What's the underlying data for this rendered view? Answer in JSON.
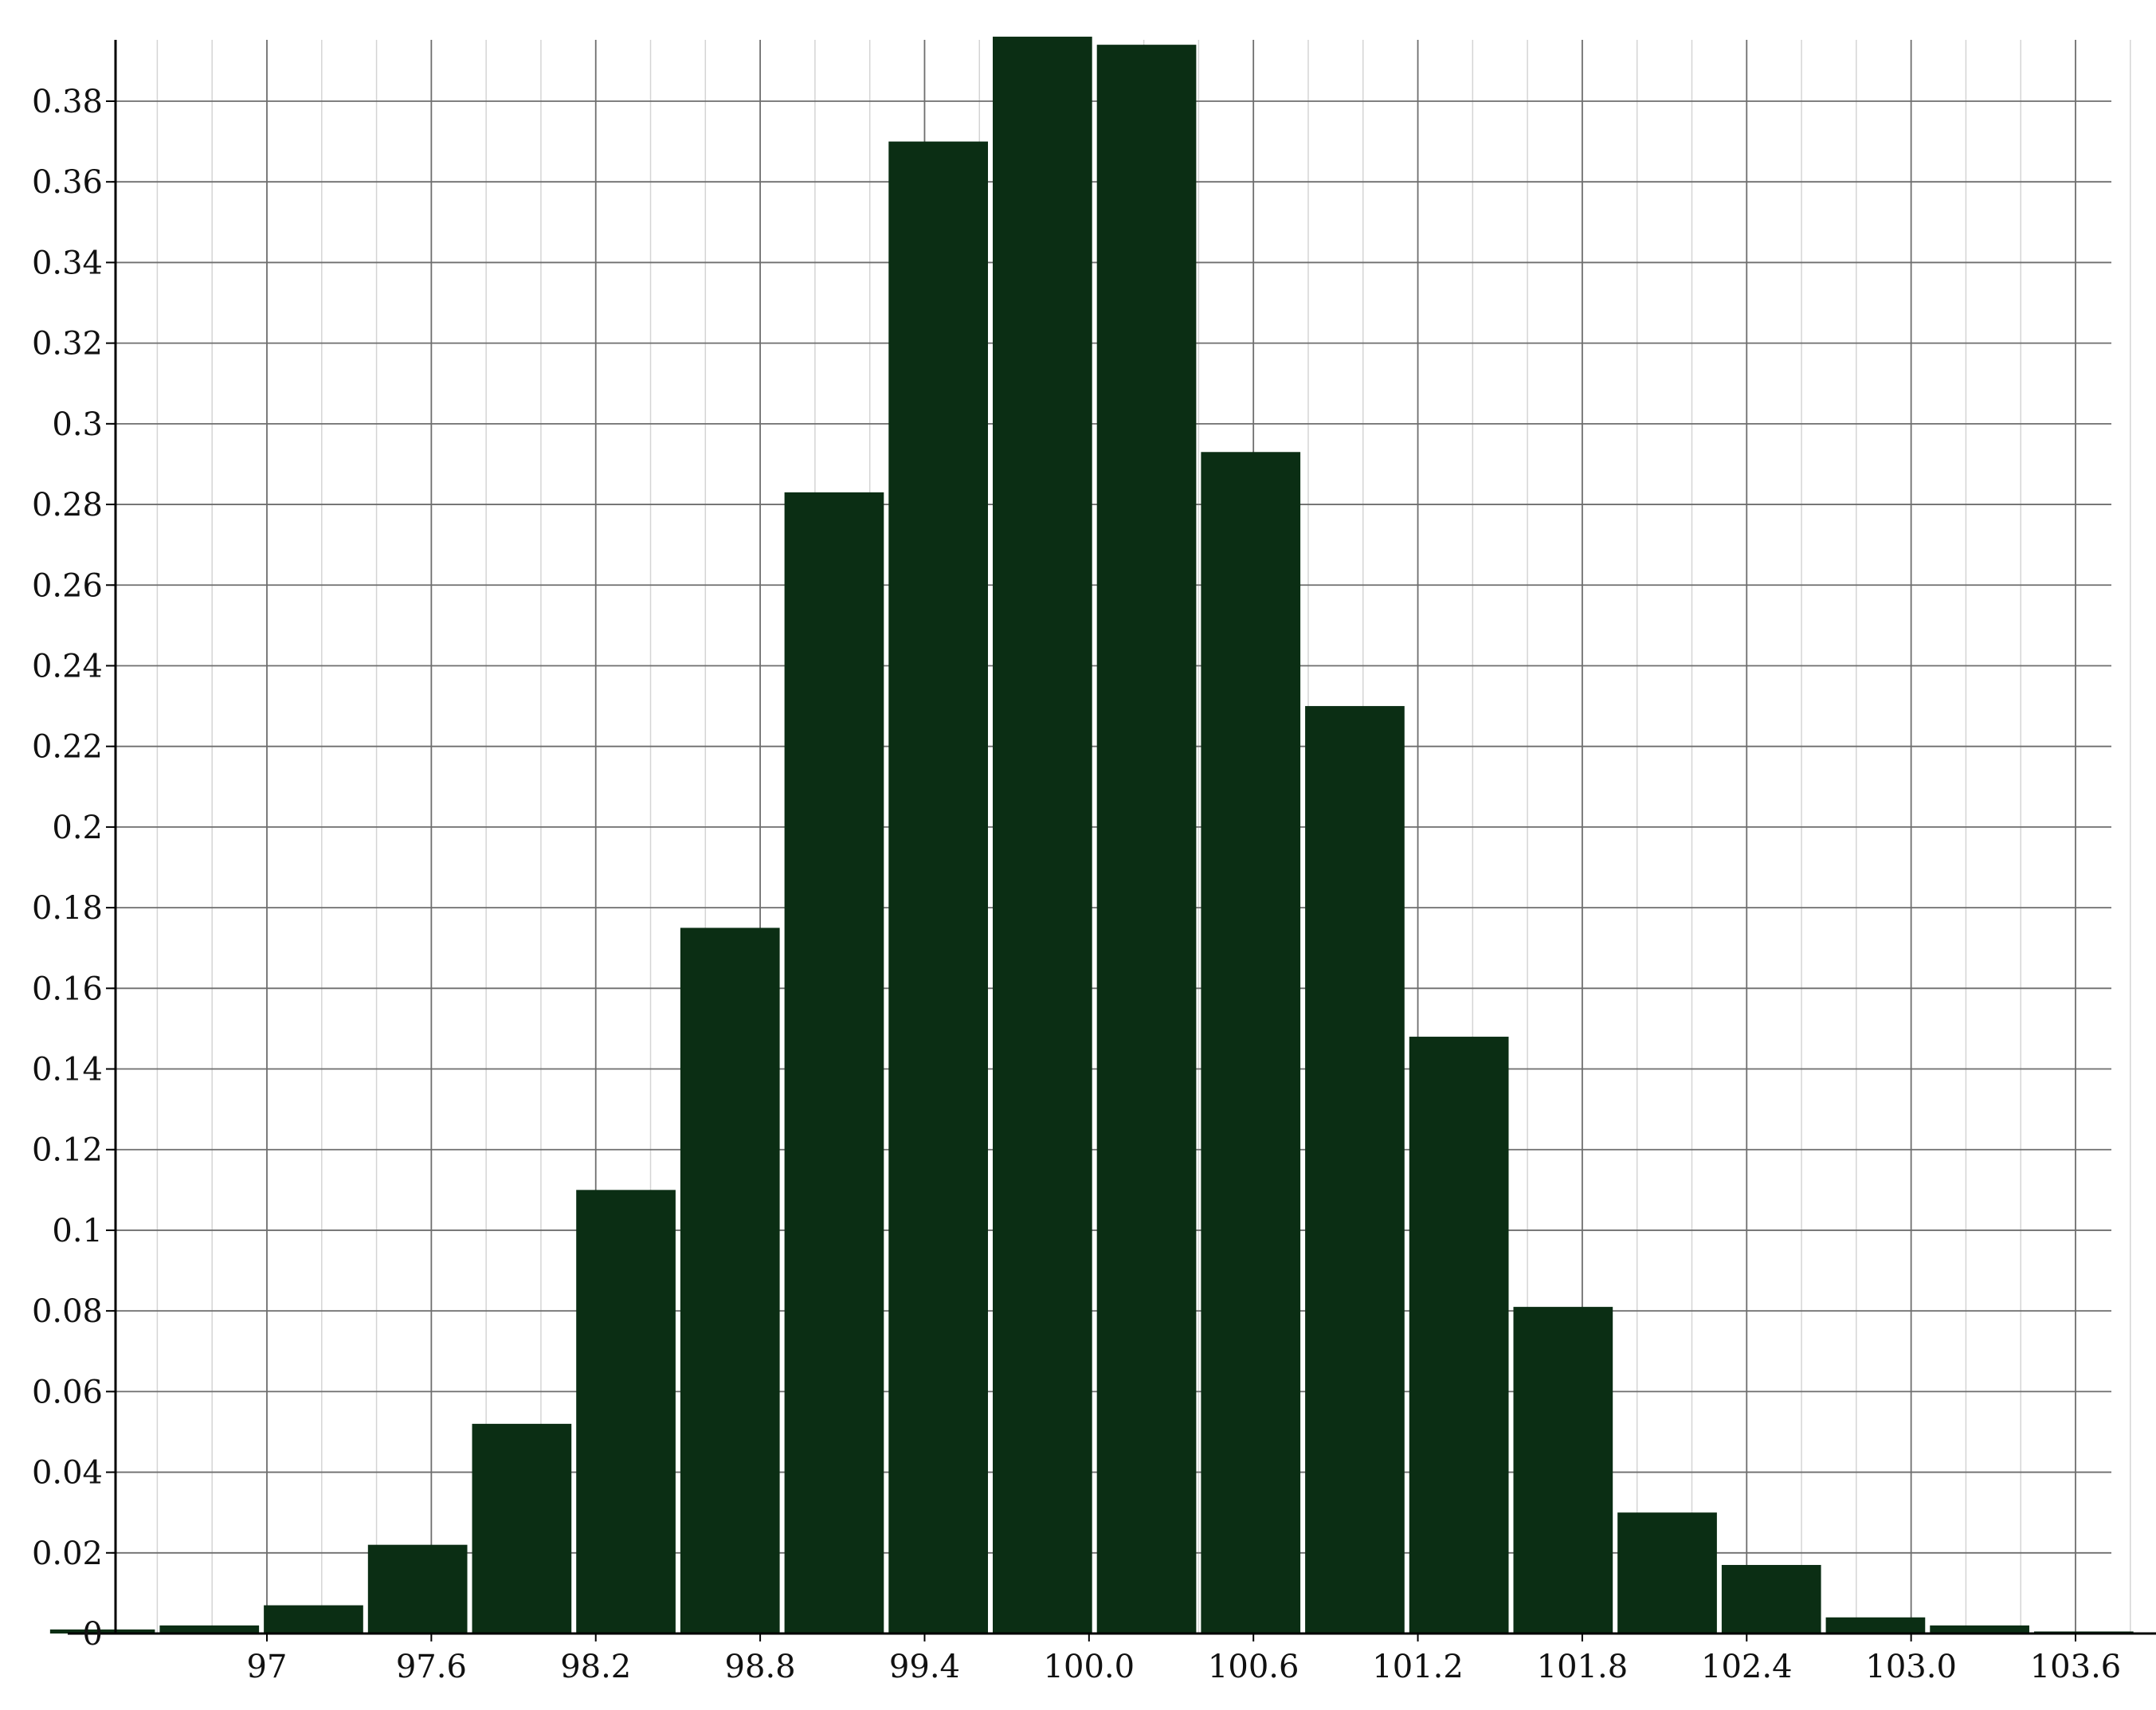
{
  "chart_data": {
    "type": "bar",
    "title": "",
    "xlabel": "",
    "ylabel": "",
    "bar_color": "#0b2e14",
    "x_ticks": [
      97,
      97.6,
      98.2,
      98.8,
      99.4,
      100.0,
      100.6,
      101.2,
      101.8,
      102.4,
      103.0,
      103.6
    ],
    "x_tick_labels": [
      "97",
      "97.6",
      "98.2",
      "98.8",
      "99.4",
      "100.0",
      "100.6",
      "101.2",
      "101.8",
      "102.4",
      "103.0",
      "103.6"
    ],
    "y_ticks": [
      0,
      0.02,
      0.04,
      0.06,
      0.08,
      0.1,
      0.12,
      0.14,
      0.16,
      0.18,
      0.2,
      0.22,
      0.24,
      0.26,
      0.28,
      0.3,
      0.32,
      0.34,
      0.36,
      0.38
    ],
    "y_tick_labels": [
      "0",
      "0.02",
      "0.04",
      "0.06",
      "0.08",
      "0.1",
      "0.12",
      "0.14",
      "0.16",
      "0.18",
      "0.2",
      "0.22",
      "0.24",
      "0.26",
      "0.28",
      "0.3",
      "0.32",
      "0.34",
      "0.36",
      "0.38"
    ],
    "xlim": [
      96.4,
      104.0
    ],
    "ylim": [
      0,
      0.395
    ],
    "bin_edges": [
      96.2,
      96.6,
      96.98,
      97.36,
      97.74,
      98.12,
      98.5,
      98.88,
      99.26,
      99.64,
      100.02,
      100.4,
      100.78,
      101.16,
      101.54,
      101.92,
      102.3,
      102.68,
      103.06,
      103.44,
      103.82
    ],
    "values": [
      0.001,
      0.002,
      0.007,
      0.022,
      0.052,
      0.11,
      0.175,
      0.283,
      0.37,
      0.396,
      0.394,
      0.293,
      0.23,
      0.148,
      0.081,
      0.03,
      0.017,
      0.004,
      0.002,
      0.0005
    ],
    "grid": true
  }
}
